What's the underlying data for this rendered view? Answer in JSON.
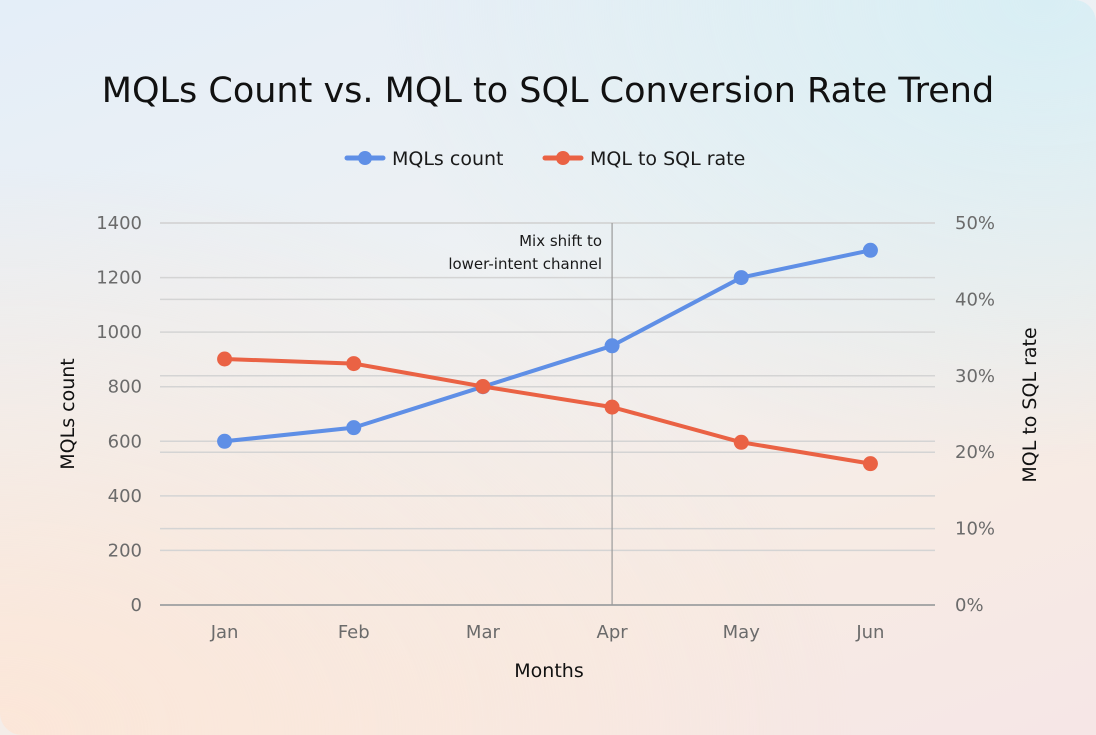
{
  "chart_data": {
    "type": "line",
    "title": "MQLs Count vs. MQL to SQL Conversion Rate Trend",
    "categories": [
      "Jan",
      "Feb",
      "Mar",
      "Apr",
      "May",
      "Jun"
    ],
    "xlabel": "Months",
    "ylabel": "MQLs count",
    "y2label": "MQL to SQL rate",
    "ylim": [
      0,
      1400
    ],
    "yticks": [
      "0",
      "200",
      "400",
      "600",
      "800",
      "1000",
      "1200",
      "1400"
    ],
    "y2lim": [
      0,
      50
    ],
    "y2ticks": [
      "0%",
      "10%",
      "20%",
      "30%",
      "40%",
      "50%"
    ],
    "grid": true,
    "legend_position": "top",
    "series": [
      {
        "name": "MQLs count",
        "axis": "left",
        "color": "#5f8fe6",
        "values": [
          600,
          650,
          800,
          950,
          1200,
          1300
        ]
      },
      {
        "name": "MQL to SQL rate",
        "axis": "right",
        "color": "#ea6244",
        "values": [
          32.2,
          31.6,
          28.6,
          25.9,
          21.3,
          18.5
        ]
      }
    ],
    "annotation": {
      "category": "Apr",
      "lines": [
        "Mix shift to",
        "lower-intent channel"
      ]
    }
  }
}
